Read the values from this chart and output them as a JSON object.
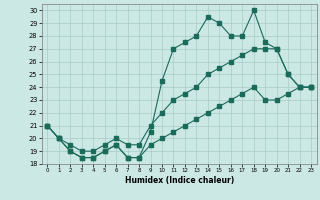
{
  "xlabel": "Humidex (Indice chaleur)",
  "bg_color": "#cce8e4",
  "line_color": "#1a6b5a",
  "x": [
    0,
    1,
    2,
    3,
    4,
    5,
    6,
    7,
    8,
    9,
    10,
    11,
    12,
    13,
    14,
    15,
    16,
    17,
    18,
    19,
    20,
    21,
    22,
    23
  ],
  "y_main": [
    21,
    20,
    19,
    18.5,
    18.5,
    19,
    19.5,
    18.5,
    18.5,
    20.5,
    24.5,
    27,
    27.5,
    28,
    29.5,
    29,
    28,
    28,
    30,
    27.5,
    27,
    25,
    24,
    24
  ],
  "y_upper": [
    21,
    20,
    19.5,
    19,
    19,
    19.5,
    20,
    19.5,
    19.5,
    21,
    22,
    23,
    23.5,
    24,
    25,
    25.5,
    26,
    26.5,
    27,
    27.0,
    27,
    25,
    24,
    24
  ],
  "y_lower": [
    21,
    20,
    19,
    18.5,
    18.5,
    19,
    19.5,
    18.5,
    18.5,
    19.5,
    20,
    20.5,
    21,
    21.5,
    22,
    22.5,
    23,
    23.5,
    24,
    23,
    23,
    23.5,
    24,
    24
  ],
  "ylim": [
    18,
    30.5
  ],
  "xlim": [
    -0.5,
    23.5
  ],
  "yticks": [
    18,
    19,
    20,
    21,
    22,
    23,
    24,
    25,
    26,
    27,
    28,
    29,
    30
  ],
  "xticks": [
    0,
    1,
    2,
    3,
    4,
    5,
    6,
    7,
    8,
    9,
    10,
    11,
    12,
    13,
    14,
    15,
    16,
    17,
    18,
    19,
    20,
    21,
    22,
    23
  ]
}
